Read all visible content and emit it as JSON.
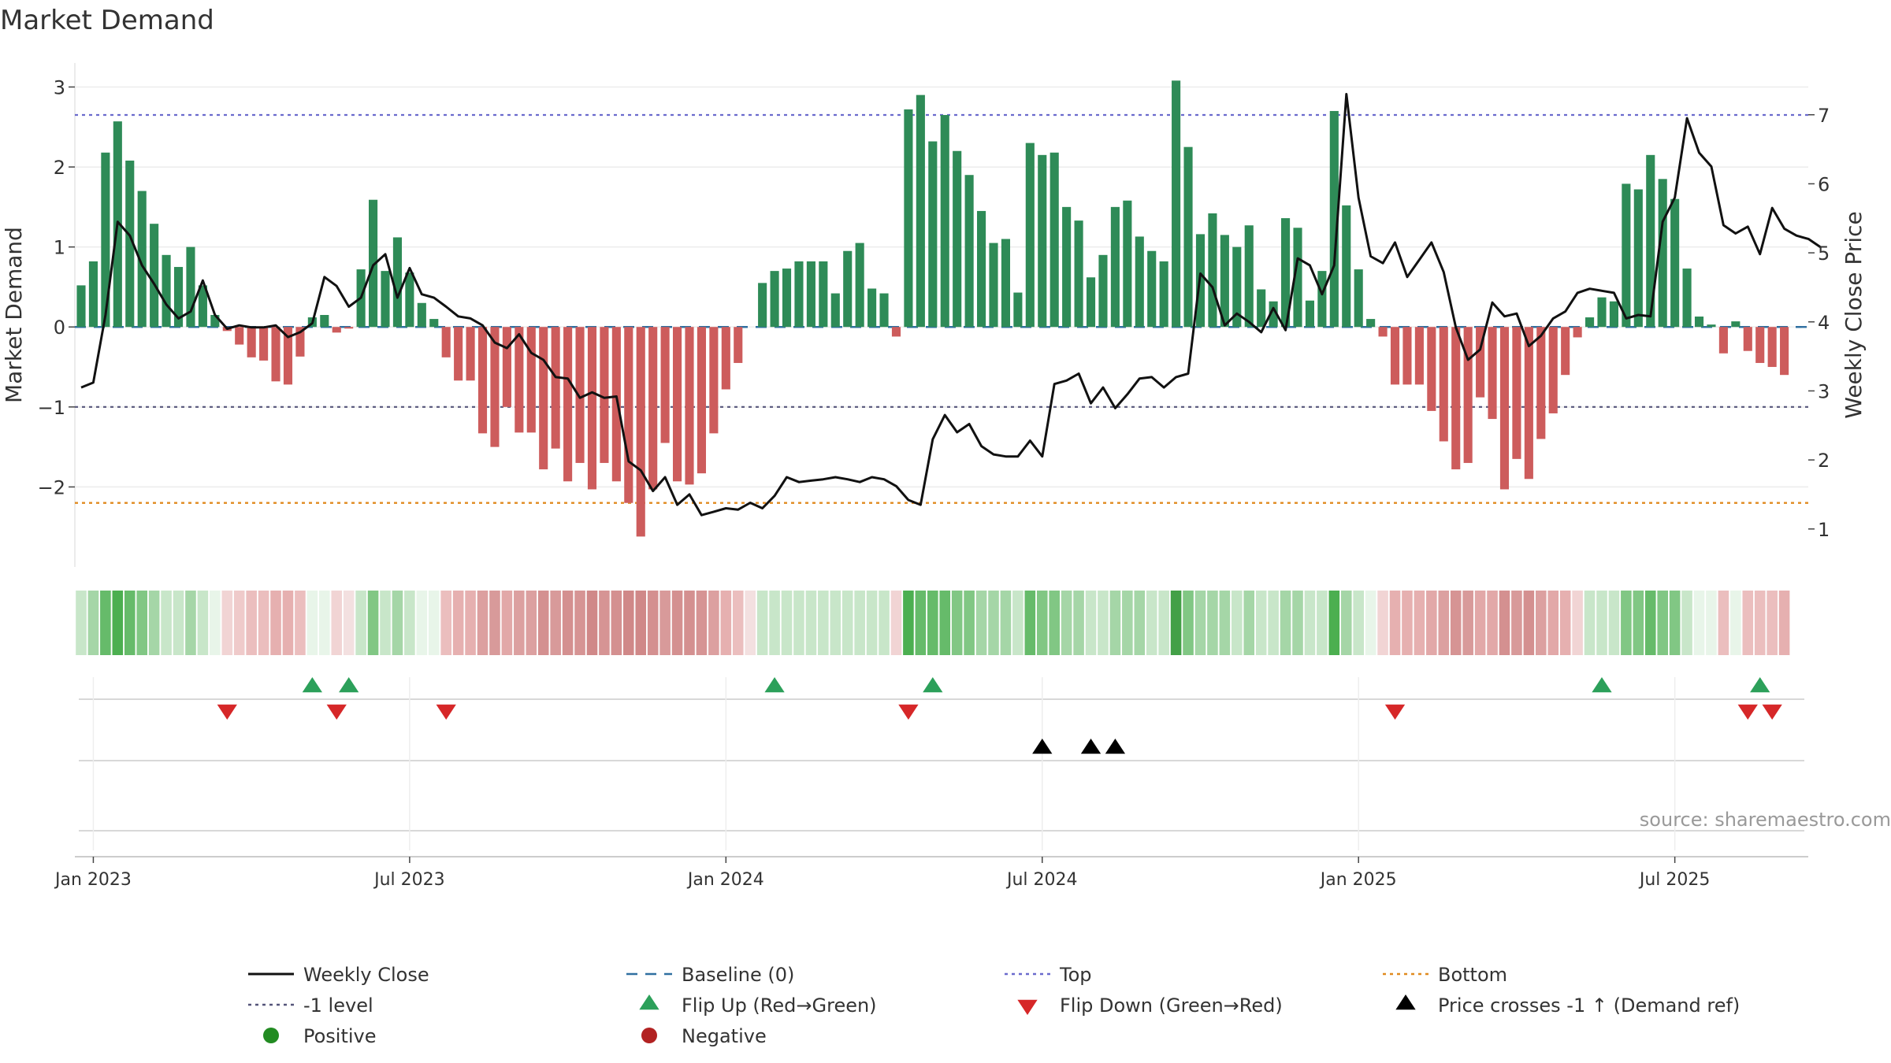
{
  "chart_data": {
    "type": "bar",
    "title": "Market Demand",
    "ylabel": "Market Demand",
    "y2label": "Weekly Close Price",
    "ylim": [
      -3.0,
      3.3
    ],
    "y2lim": [
      0.45,
      7.75
    ],
    "yticks": [
      3,
      2,
      1,
      0,
      -1,
      -2
    ],
    "yticklabels": [
      "3",
      "2",
      "1",
      "0",
      "−1",
      "−2"
    ],
    "y2ticks": [
      7,
      6,
      5,
      4,
      3,
      2,
      1
    ],
    "xticklabels": [
      "Jan 2023",
      "Jul 2023",
      "Jan 2024",
      "Jul 2024",
      "Jan 2025",
      "Jul 2025"
    ],
    "xtick_weeks": [
      1,
      27,
      53,
      79,
      105,
      131
    ],
    "reference_lines": {
      "top": 2.65,
      "minus_one": -1.0,
      "bottom": -2.2,
      "baseline": 0
    },
    "colors": {
      "positive_bar": "#2e8b57",
      "negative_bar": "#cd5c5c",
      "price_line": "#111111",
      "top_line": "#6a6acd",
      "minus_one_line": "#55557a",
      "bottom_line": "#e08a1e",
      "baseline": "#2f6fa0",
      "flip_up": "#2ca05a",
      "flip_down": "#d62728",
      "cross": "#000000",
      "positive_dot": "#228b22",
      "negative_dot": "#b22222"
    },
    "series": [
      {
        "name": "Market Demand",
        "values": [
          0.52,
          0.82,
          2.18,
          2.57,
          2.08,
          1.7,
          1.29,
          0.9,
          0.75,
          1.0,
          0.52,
          0.15,
          -0.05,
          -0.22,
          -0.38,
          -0.42,
          -0.68,
          -0.72,
          -0.37,
          0.12,
          0.15,
          -0.07,
          -0.02,
          0.72,
          1.59,
          0.7,
          1.12,
          0.68,
          0.3,
          0.1,
          -0.38,
          -0.67,
          -0.67,
          -1.33,
          -1.5,
          -1.0,
          -1.32,
          -1.32,
          -1.78,
          -1.52,
          -1.93,
          -1.7,
          -2.03,
          -1.7,
          -1.93,
          -2.2,
          -2.62,
          -2.03,
          -1.45,
          -1.93,
          -1.97,
          -1.83,
          -1.33,
          -0.78,
          -0.45,
          0,
          0.55,
          0.7,
          0.73,
          0.82,
          0.82,
          0.82,
          0.42,
          0.95,
          1.05,
          0.48,
          0.42,
          -0.12,
          2.72,
          2.9,
          2.32,
          2.65,
          2.2,
          1.9,
          1.45,
          1.05,
          1.1,
          0.43,
          2.3,
          2.15,
          2.18,
          1.5,
          1.33,
          0.62,
          0.9,
          1.5,
          1.58,
          1.13,
          0.95,
          0.82,
          3.08,
          2.25,
          1.16,
          1.42,
          1.15,
          1.0,
          1.27,
          0.47,
          0.32,
          1.36,
          1.24,
          0.33,
          0.7,
          2.7,
          1.52,
          0.72,
          0.1,
          -0.12,
          -0.72,
          -0.72,
          -0.72,
          -1.05,
          -1.43,
          -1.78,
          -1.7,
          -0.88,
          -1.15,
          -2.03,
          -1.65,
          -1.9,
          -1.4,
          -1.08,
          -0.6,
          -0.13,
          0.12,
          0.37,
          0.32,
          1.79,
          1.72,
          2.15,
          1.85,
          1.6,
          0.73,
          0.13,
          0.03,
          -0.33,
          0.07,
          -0.3,
          -0.45,
          -0.5,
          -0.6
        ],
        "colors": [
          "pos",
          "neg"
        ]
      },
      {
        "name": "Weekly Close",
        "axis": "right",
        "values": [
          3.05,
          3.12,
          4.1,
          5.45,
          5.25,
          4.82,
          4.55,
          4.25,
          4.05,
          4.15,
          4.6,
          4.1,
          3.9,
          3.95,
          3.92,
          3.92,
          3.95,
          3.78,
          3.85,
          3.98,
          4.65,
          4.52,
          4.22,
          4.35,
          4.82,
          4.98,
          4.35,
          4.78,
          4.4,
          4.35,
          4.22,
          4.08,
          4.05,
          3.95,
          3.7,
          3.62,
          3.82,
          3.55,
          3.45,
          3.2,
          3.18,
          2.9,
          2.98,
          2.9,
          2.92,
          1.98,
          1.85,
          1.55,
          1.75,
          1.35,
          1.5,
          1.2,
          1.25,
          1.3,
          1.28,
          1.38,
          1.3,
          1.48,
          1.75,
          1.68,
          1.7,
          1.72,
          1.75,
          1.72,
          1.68,
          1.75,
          1.72,
          1.62,
          1.42,
          1.35,
          2.3,
          2.65,
          2.4,
          2.52,
          2.2,
          2.08,
          2.05,
          2.05,
          2.28,
          2.05,
          3.1,
          3.15,
          3.25,
          2.82,
          3.05,
          2.75,
          2.95,
          3.18,
          3.2,
          3.05,
          3.2,
          3.25,
          4.7,
          4.5,
          3.95,
          4.12,
          4.0,
          3.85,
          4.2,
          3.88,
          4.92,
          4.82,
          4.4,
          4.82,
          7.3,
          5.8,
          4.95,
          4.85,
          5.15,
          4.65,
          4.9,
          5.15,
          4.72,
          3.92,
          3.45,
          3.6,
          4.28,
          4.08,
          4.12,
          3.65,
          3.8,
          4.05,
          4.15,
          4.42,
          4.48,
          4.45,
          4.42,
          4.05,
          4.1,
          4.08,
          5.45,
          5.8,
          6.95,
          6.45,
          6.25,
          5.4,
          5.28,
          5.38,
          4.98,
          5.65,
          5.35,
          5.25,
          5.2,
          5.08
        ]
      }
    ],
    "strip": {
      "name": "Demand heat strip",
      "colors": [
        "#c8e6c9",
        "#a5d6a7",
        "#66bb6a",
        "#4caf50",
        "#66bb6a",
        "#81c784",
        "#a5d6a7",
        "#c8e6c9",
        "#c8e6c9",
        "#a5d6a7",
        "#c8e6c9",
        "#e8f5e9",
        "#f1d4d4",
        "#efcaca",
        "#ebbebe",
        "#ebbebe",
        "#e6b0b0",
        "#e6b0b0",
        "#ebbebe",
        "#e8f5e9",
        "#e8f5e9",
        "#f1d4d4",
        "#f3e0e0",
        "#c8e6c9",
        "#81c784",
        "#c8e6c9",
        "#a5d6a7",
        "#c8e6c9",
        "#e8f5e9",
        "#e8f5e9",
        "#ebbebe",
        "#e6b0b0",
        "#e6b0b0",
        "#dca0a0",
        "#d89a9a",
        "#e2a8a8",
        "#dca0a0",
        "#dca0a0",
        "#d49090",
        "#d89a9a",
        "#d49090",
        "#d69494",
        "#d08888",
        "#d69494",
        "#d49090",
        "#d08888",
        "#d08888",
        "#d49090",
        "#d89a9a",
        "#d49090",
        "#d49090",
        "#d69494",
        "#dca0a0",
        "#e6b0b0",
        "#ebbebe",
        "#f3e0e0",
        "#c8e6c9",
        "#c8e6c9",
        "#c8e6c9",
        "#c8e6c9",
        "#c8e6c9",
        "#c8e6c9",
        "#c8e6c9",
        "#c8e6c9",
        "#c8e6c9",
        "#c8e6c9",
        "#c8e6c9",
        "#f1d4d4",
        "#4caf50",
        "#66bb6a",
        "#66bb6a",
        "#66bb6a",
        "#81c784",
        "#81c784",
        "#a5d6a7",
        "#a5d6a7",
        "#a5d6a7",
        "#c8e6c9",
        "#66bb6a",
        "#81c784",
        "#81c784",
        "#a5d6a7",
        "#a5d6a7",
        "#c8e6c9",
        "#c8e6c9",
        "#a5d6a7",
        "#a5d6a7",
        "#a5d6a7",
        "#c8e6c9",
        "#c8e6c9",
        "#43a047",
        "#81c784",
        "#a5d6a7",
        "#a5d6a7",
        "#a5d6a7",
        "#c8e6c9",
        "#a5d6a7",
        "#c8e6c9",
        "#c8e6c9",
        "#a5d6a7",
        "#a5d6a7",
        "#c8e6c9",
        "#c8e6c9",
        "#4caf50",
        "#a5d6a7",
        "#c8e6c9",
        "#e8f5e9",
        "#f1d4d4",
        "#e6b0b0",
        "#e6b0b0",
        "#e6b0b0",
        "#e2a8a8",
        "#dca0a0",
        "#d69494",
        "#d89a9a",
        "#e2a8a8",
        "#e2a8a8",
        "#d49090",
        "#d89a9a",
        "#d49090",
        "#dca0a0",
        "#e2a8a8",
        "#e6b0b0",
        "#f1d4d4",
        "#c8e6c9",
        "#c8e6c9",
        "#c8e6c9",
        "#81c784",
        "#81c784",
        "#66bb6a",
        "#81c784",
        "#81c784",
        "#c8e6c9",
        "#e8f5e9",
        "#e8f5e9",
        "#ebbebe",
        "#e8f5e9",
        "#ebbebe",
        "#ebbebe",
        "#ebbebe",
        "#e6b0b0"
      ]
    },
    "flip_up_weeks": [
      19,
      22,
      57,
      70,
      125,
      138
    ],
    "flip_down_weeks": [
      12,
      21,
      30,
      68,
      108,
      137,
      139
    ],
    "price_cross_weeks": [
      79,
      83,
      85
    ],
    "legend": [
      {
        "key": "weekly_close",
        "label": "Weekly Close",
        "marker": "line-solid"
      },
      {
        "key": "baseline",
        "label": "Baseline (0)",
        "marker": "line-dash"
      },
      {
        "key": "top",
        "label": "Top",
        "marker": "line-dot-top"
      },
      {
        "key": "bottom",
        "label": "Bottom",
        "marker": "line-dot-bottom"
      },
      {
        "key": "minus_one",
        "label": "-1 level",
        "marker": "line-dot-minus"
      },
      {
        "key": "flip_up",
        "label": "Flip Up (Red→Green)",
        "marker": "tri-up-green"
      },
      {
        "key": "flip_down",
        "label": "Flip Down (Green→Red)",
        "marker": "tri-down-red"
      },
      {
        "key": "price_cross",
        "label": "Price crosses -1 ↑ (Demand ref)",
        "marker": "tri-up-black"
      },
      {
        "key": "positive",
        "label": "Positive",
        "marker": "dot-green"
      },
      {
        "key": "negative",
        "label": "Negative",
        "marker": "dot-red"
      }
    ],
    "legend_placement": "bottom",
    "source": "source: sharemaestro.com"
  }
}
